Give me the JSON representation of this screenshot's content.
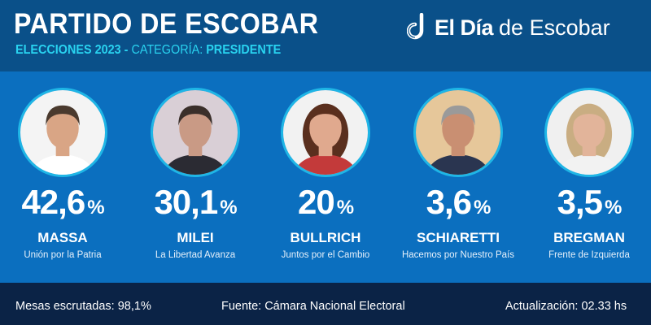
{
  "header": {
    "title": "PARTIDO DE ESCOBAR",
    "subtitle_prefix": "ELECCIONES 2023 - ",
    "subtitle_category_label": "CATEGORÍA: ",
    "subtitle_category": "PRESIDENTE",
    "logo_bold": "El Día",
    "logo_regular": "de Escobar"
  },
  "colors": {
    "header": "#0a5089",
    "main": "#0b6fbf",
    "footer": "#0b2346",
    "accent": "#29d3f0"
  },
  "candidates": [
    {
      "percent": "42,6",
      "sign": "%",
      "name": "MASSA",
      "party": "Unión por la Patria",
      "bg": "#f4f4f4",
      "hair": "#4a3a2e",
      "skin": "#d9a585",
      "shirt": "#ffffff"
    },
    {
      "percent": "30,1",
      "sign": "%",
      "name": "MILEI",
      "party": "La Libertad Avanza",
      "bg": "#d9cfd6",
      "hair": "#3a2f2a",
      "skin": "#c99a85",
      "shirt": "#2b2b33"
    },
    {
      "percent": "20",
      "sign": "%",
      "name": "BULLRICH",
      "party": "Juntos por el Cambio",
      "bg": "#f2f2f2",
      "hair": "#5a2f1e",
      "skin": "#e0a98e",
      "shirt": "#c33a3a"
    },
    {
      "percent": "3,6",
      "sign": "%",
      "name": "SCHIARETTI",
      "party": "Hacemos por Nuestro País",
      "bg": "#e6c79a",
      "hair": "#9a9a9a",
      "skin": "#c98f72",
      "shirt": "#2a3550"
    },
    {
      "percent": "3,5",
      "sign": "%",
      "name": "BREGMAN",
      "party": "Frente de Izquierda",
      "bg": "#f0f0f0",
      "hair": "#c9ad82",
      "skin": "#e2b49a",
      "shirt": "#f2f2f2"
    }
  ],
  "footer": {
    "mesas": "Mesas escrutadas: 98,1%",
    "fuente": "Fuente: Cámara Nacional Electoral",
    "actualizacion": "Actualización: 02.33 hs"
  }
}
